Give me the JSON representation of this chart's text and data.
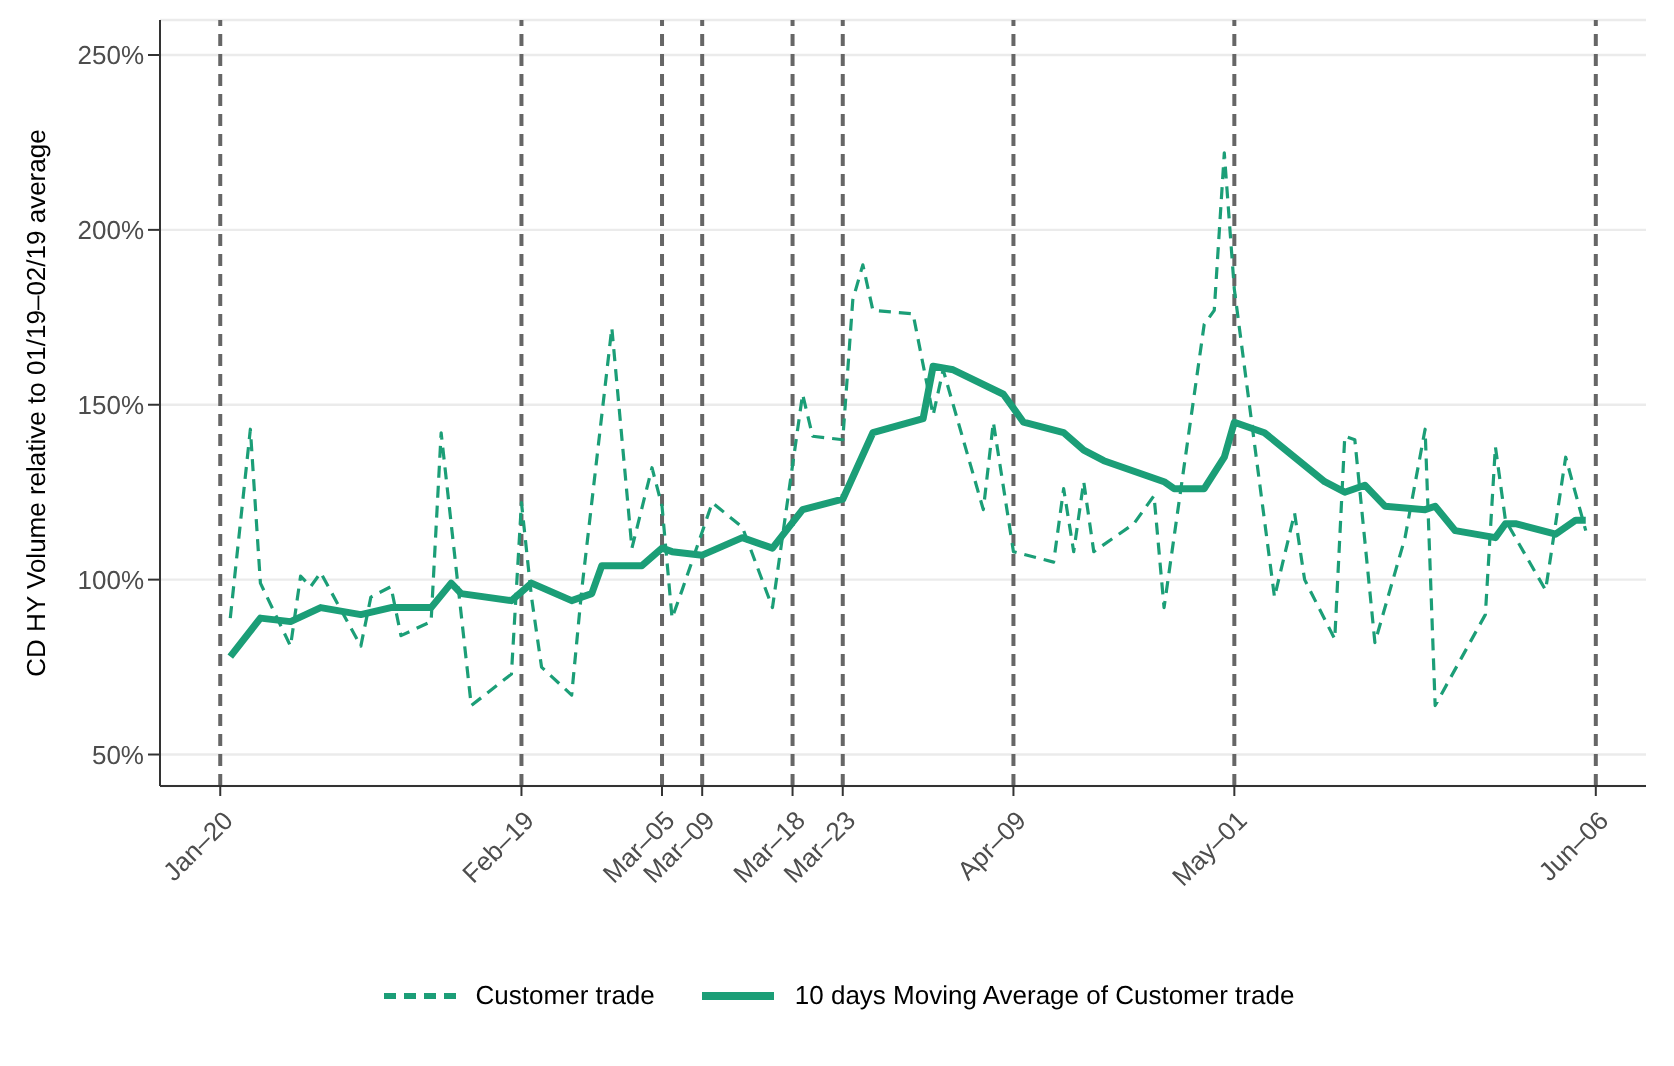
{
  "chart_data": {
    "type": "line",
    "ylabel": "CD HY Volume relative to 01/19–02/19 average",
    "xlim": [
      "--01-14",
      "--06-11"
    ],
    "xticks": [
      {
        "value": "--01-20",
        "label": "Jan–20"
      },
      {
        "value": "--02-19",
        "label": "Feb–19"
      },
      {
        "value": "--03-05",
        "label": "Mar–05"
      },
      {
        "value": "--03-09",
        "label": "Mar–09"
      },
      {
        "value": "--03-18",
        "label": "Mar–18"
      },
      {
        "value": "--03-23",
        "label": "Mar–23"
      },
      {
        "value": "--04-09",
        "label": "Apr–09"
      },
      {
        "value": "--05-01",
        "label": "May–01"
      },
      {
        "value": "--06-06",
        "label": "Jun–06"
      }
    ],
    "ylim": [
      41,
      260
    ],
    "yticks": [
      {
        "value": 50,
        "label": "50%"
      },
      {
        "value": 100,
        "label": "100%"
      },
      {
        "value": 150,
        "label": "150%"
      },
      {
        "value": 200,
        "label": "200%"
      },
      {
        "value": 250,
        "label": "250%"
      }
    ],
    "grid": "y",
    "legend": "bottom",
    "ref_lines": [
      {
        "axis": "x",
        "value": "--01-20",
        "color": "#666666",
        "line_style": "dashed"
      },
      {
        "axis": "x",
        "value": "--02-19",
        "color": "#666666",
        "line_style": "dashed"
      },
      {
        "axis": "x",
        "value": "--03-05",
        "color": "#666666",
        "line_style": "dashed"
      },
      {
        "axis": "x",
        "value": "--03-09",
        "color": "#666666",
        "line_style": "dashed"
      },
      {
        "axis": "x",
        "value": "--03-18",
        "color": "#666666",
        "line_style": "dashed"
      },
      {
        "axis": "x",
        "value": "--03-23",
        "color": "#666666",
        "line_style": "dashed"
      },
      {
        "axis": "x",
        "value": "--04-09",
        "color": "#666666",
        "line_style": "dashed"
      },
      {
        "axis": "x",
        "value": "--05-01",
        "color": "#666666",
        "line_style": "dashed"
      },
      {
        "axis": "x",
        "value": "--06-06",
        "color": "#666666",
        "line_style": "dashed"
      }
    ],
    "series": [
      {
        "name": "Customer trade",
        "color": "#1b9e77",
        "line_style": "dashed",
        "x": [
          "--01-21",
          "--01-23",
          "--01-24",
          "--01-27",
          "--01-28",
          "--01-29",
          "--01-30",
          "--02-03",
          "--02-04",
          "--02-06",
          "--02-07",
          "--02-10",
          "--02-11",
          "--02-14",
          "--02-18",
          "--02-19",
          "--02-20",
          "--02-21",
          "--02-24",
          "--02-25",
          "--02-28",
          "--03-02",
          "--03-04",
          "--03-05",
          "--03-06",
          "--03-07",
          "--03-10",
          "--03-13",
          "--03-16",
          "--03-19",
          "--03-20",
          "--03-23",
          "--03-24",
          "--03-25",
          "--03-26",
          "--03-30",
          "--04-01",
          "--04-02",
          "--04-06",
          "--04-07",
          "--04-09",
          "--04-13",
          "--04-14",
          "--04-15",
          "--04-16",
          "--04-17",
          "--04-21",
          "--04-23",
          "--04-24",
          "--04-28",
          "--04-29",
          "--04-30",
          "--05-01",
          "--05-05",
          "--05-07",
          "--05-08",
          "--05-11",
          "--05-12",
          "--05-13",
          "--05-15",
          "--05-18",
          "--05-20",
          "--05-21",
          "--05-26",
          "--05-27",
          "--05-28",
          "--06-01",
          "--06-03",
          "--06-05"
        ],
        "values": [
          89,
          143,
          99,
          81,
          101,
          98,
          102,
          81,
          95,
          98,
          84,
          88,
          142,
          64,
          73,
          122,
          95,
          75,
          67,
          97,
          172,
          109,
          132,
          121,
          89,
          97,
          122,
          115,
          92,
          153,
          141,
          140,
          180,
          190,
          177,
          176,
          147,
          160,
          120,
          145,
          108,
          105,
          126,
          108,
          128,
          108,
          116,
          124,
          92,
          173,
          177,
          222,
          183,
          95,
          119,
          100,
          83,
          141,
          140,
          82,
          112,
          143,
          64,
          90,
          138,
          117,
          97,
          135,
          114
        ]
      },
      {
        "name": "10 days Moving Average of Customer trade",
        "color": "#1b9e77",
        "line_style": "solid",
        "x": [
          "--01-21",
          "--01-24",
          "--01-27",
          "--01-30",
          "--02-03",
          "--02-06",
          "--02-10",
          "--02-12",
          "--02-13",
          "--02-18",
          "--02-20",
          "--02-24",
          "--02-26",
          "--02-27",
          "--03-03",
          "--03-05",
          "--03-06",
          "--03-09",
          "--03-13",
          "--03-16",
          "--03-19",
          "--03-23",
          "--03-26",
          "--03-31",
          "--04-01",
          "--04-03",
          "--04-08",
          "--04-10",
          "--04-14",
          "--04-16",
          "--04-18",
          "--04-21",
          "--04-24",
          "--04-25",
          "--04-28",
          "--04-30",
          "--05-01",
          "--05-04",
          "--05-07",
          "--05-10",
          "--05-12",
          "--05-14",
          "--05-16",
          "--05-20",
          "--05-21",
          "--05-23",
          "--05-27",
          "--05-28",
          "--05-29",
          "--06-02",
          "--06-04",
          "--06-05"
        ],
        "values": [
          78,
          89,
          88,
          92,
          90,
          92,
          92,
          99,
          96,
          94,
          99,
          94,
          96,
          104,
          104,
          109,
          108,
          107,
          112,
          109,
          120,
          123,
          142,
          146,
          161,
          160,
          153,
          145,
          142,
          137,
          134,
          131,
          128,
          126,
          126,
          135,
          145,
          142,
          135,
          128,
          125,
          127,
          121,
          120,
          121,
          114,
          112,
          116,
          116,
          113,
          117,
          117
        ]
      }
    ]
  }
}
